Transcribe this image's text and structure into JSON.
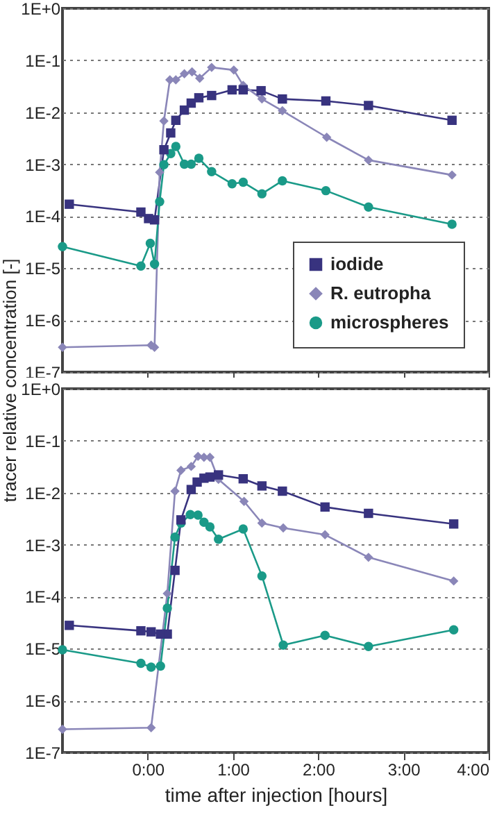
{
  "chart_data": [
    {
      "type": "line",
      "ylabel": "tracer relative concentration [-]",
      "log": "y",
      "xlim": [
        -1,
        4
      ],
      "xticks": [
        {
          "value": 0,
          "label": null
        },
        {
          "value": 1,
          "label": null
        },
        {
          "value": 2,
          "label": null
        },
        {
          "value": 3,
          "label": null
        },
        {
          "value": 4,
          "label": null
        }
      ],
      "ylim": [
        1e-07,
        1
      ],
      "yticks": [
        {
          "value": 1e-07,
          "label": "1E-7"
        },
        {
          "value": 1e-06,
          "label": "1E-6"
        },
        {
          "value": 1e-05,
          "label": "1E-5"
        },
        {
          "value": 0.0001,
          "label": "1E-4"
        },
        {
          "value": 0.001,
          "label": "1E-3"
        },
        {
          "value": 0.01,
          "label": "1E-2"
        },
        {
          "value": 0.1,
          "label": "1E-1"
        },
        {
          "value": 1,
          "label": "1E+0"
        }
      ],
      "grid": "y",
      "legend": "bottom right",
      "tick_labels": "y",
      "series": [
        {
          "name": "iodide",
          "color": "#38337f",
          "marker": "square",
          "x": [
            -0.92,
            -0.08,
            0.01,
            0.08,
            0.19,
            0.27,
            0.33,
            0.43,
            0.51,
            0.6,
            0.75,
            0.99,
            1.12,
            1.33,
            1.58,
            2.09,
            2.59,
            3.57
          ],
          "values": [
            0.00017,
            0.00012,
            9e-05,
            8.5e-05,
            0.0019,
            0.004,
            0.007,
            0.011,
            0.015,
            0.019,
            0.021,
            0.027,
            0.027,
            0.026,
            0.018,
            0.0165,
            0.0135,
            0.007
          ]
        },
        {
          "name": "R. eutropha",
          "color": "#8a86b8",
          "marker": "diamond",
          "x": [
            -1,
            0.04,
            0.08,
            0.14,
            0.19,
            0.26,
            0.33,
            0.43,
            0.52,
            0.61,
            0.75,
            1.01,
            1.12,
            1.34,
            1.58,
            2.1,
            2.59,
            3.57
          ],
          "values": [
            3e-07,
            3.3e-07,
            3e-07,
            0.0007,
            0.0068,
            0.042,
            0.042,
            0.055,
            0.06,
            0.045,
            0.073,
            0.065,
            0.033,
            0.018,
            0.0107,
            0.0033,
            0.0012,
            0.00062
          ]
        },
        {
          "name": "microspheres",
          "color": "#1a9a88",
          "marker": "circle",
          "x": [
            -1,
            -0.08,
            0.03,
            0.08,
            0.14,
            0.19,
            0.27,
            0.33,
            0.43,
            0.51,
            0.6,
            0.75,
            0.99,
            1.12,
            1.34,
            1.58,
            2.09,
            2.59,
            3.57
          ],
          "values": [
            2.6e-05,
            1.1e-05,
            3e-05,
            1.2e-05,
            0.00019,
            0.00098,
            0.0016,
            0.0022,
            0.001,
            0.001,
            0.0013,
            0.00072,
            0.00042,
            0.00045,
            0.00027,
            0.00048,
            0.00031,
            0.00015,
            7e-05
          ]
        }
      ]
    },
    {
      "type": "line",
      "xlabel": "time after injection  [hours]",
      "log": "y",
      "xlim": [
        -1,
        4
      ],
      "xticks": [
        {
          "value": 0,
          "label": "0:00"
        },
        {
          "value": 1,
          "label": "1:00"
        },
        {
          "value": 2,
          "label": "2:00"
        },
        {
          "value": 3,
          "label": "3:00"
        },
        {
          "value": 4,
          "label": "4:00"
        }
      ],
      "ylim": [
        1e-07,
        1
      ],
      "yticks": [
        {
          "value": 1e-07,
          "label": "1E-7"
        },
        {
          "value": 1e-06,
          "label": "1E-6"
        },
        {
          "value": 1e-05,
          "label": "1E-5"
        },
        {
          "value": 0.0001,
          "label": "1E-4"
        },
        {
          "value": 0.001,
          "label": "1E-3"
        },
        {
          "value": 0.01,
          "label": "1E-2"
        },
        {
          "value": 0.1,
          "label": "1E-1"
        },
        {
          "value": 1,
          "label": "1E+0"
        }
      ],
      "grid": "y",
      "series": [
        {
          "color": "#38337f",
          "marker": "square",
          "x": [
            -0.92,
            -0.08,
            0.04,
            0.15,
            0.23,
            0.32,
            0.39,
            0.51,
            0.58,
            0.66,
            0.73,
            0.83,
            1.12,
            1.34,
            1.58,
            2.08,
            2.59,
            3.59
          ],
          "values": [
            2.8e-05,
            2.2e-05,
            2.1e-05,
            1.9e-05,
            1.9e-05,
            0.00032,
            0.003,
            0.0115,
            0.016,
            0.019,
            0.02,
            0.022,
            0.0185,
            0.0135,
            0.0107,
            0.0053,
            0.004,
            0.0025
          ]
        },
        {
          "color": "#8a86b8",
          "marker": "diamond",
          "x": [
            -1,
            0.04,
            0.23,
            0.32,
            0.39,
            0.51,
            0.59,
            0.66,
            0.73,
            0.83,
            1.13,
            1.34,
            1.59,
            2.08,
            2.59,
            3.59
          ],
          "values": [
            2.8e-07,
            3e-07,
            0.000115,
            0.0107,
            0.027,
            0.032,
            0.05,
            0.048,
            0.048,
            0.018,
            0.0068,
            0.0026,
            0.0021,
            0.00155,
            0.00057,
            0.0002
          ]
        },
        {
          "color": "#1a9a88",
          "marker": "circle",
          "x": [
            -1,
            -0.08,
            0.04,
            0.15,
            0.23,
            0.32,
            0.39,
            0.5,
            0.59,
            0.66,
            0.73,
            0.83,
            1.12,
            1.34,
            1.59,
            2.08,
            2.59,
            3.59
          ],
          "values": [
            9.5e-06,
            5.2e-06,
            4.4e-06,
            4.6e-06,
            6e-05,
            0.0014,
            0.0026,
            0.0038,
            0.0037,
            0.0027,
            0.0022,
            0.00127,
            0.002,
            0.00025,
            1.17e-05,
            1.8e-05,
            1.1e-05,
            2.3e-05
          ]
        }
      ]
    }
  ]
}
